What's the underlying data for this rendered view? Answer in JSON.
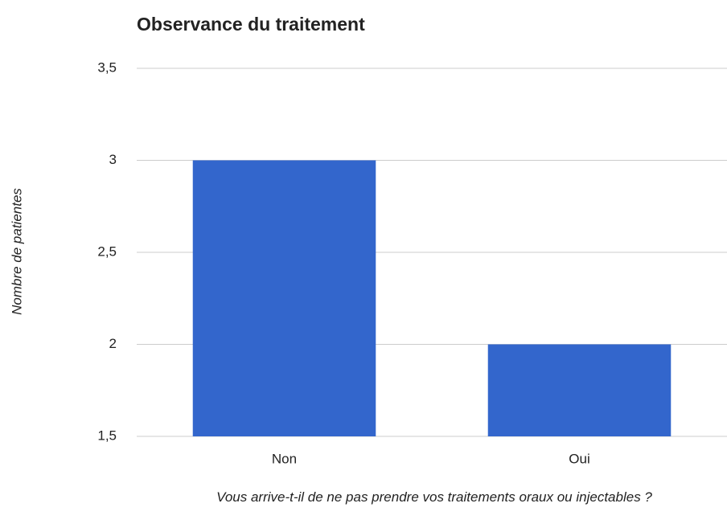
{
  "chart_data": {
    "type": "bar",
    "title": "Observance du traitement",
    "x_label": "Vous arrive-t-il de ne pas prendre vos traitements oraux ou injectables ?",
    "y_label": "Nombre de patientes",
    "categories": [
      "Non",
      "Oui"
    ],
    "values": [
      3,
      2
    ],
    "color": "#3366cc",
    "ylim": [
      1.5,
      3.5
    ],
    "yticks": [
      {
        "value": 1.5,
        "label": "1,5"
      },
      2,
      {
        "value": 2.5,
        "label": "2,5"
      },
      3,
      {
        "value": 3.5,
        "label": "3,5"
      }
    ],
    "grid": true
  }
}
